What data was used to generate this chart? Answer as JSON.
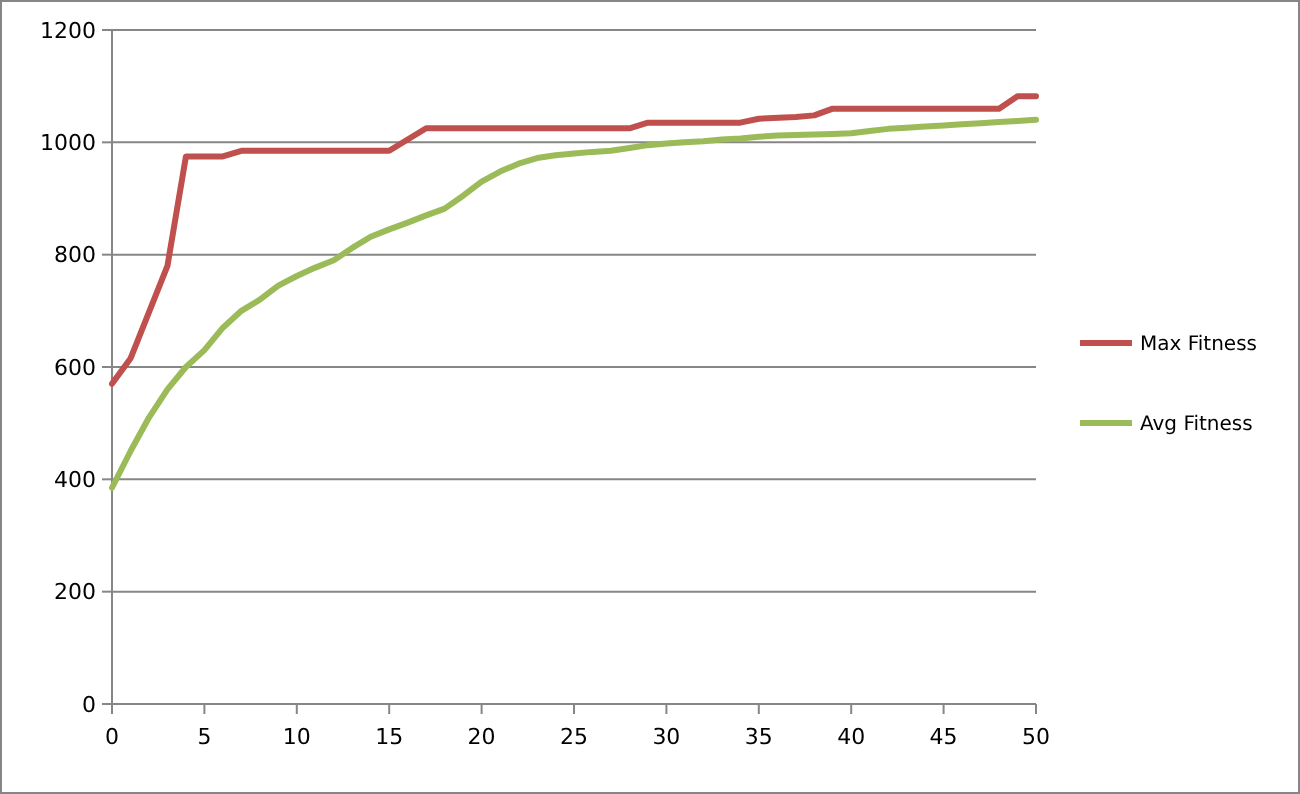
{
  "chart_data": {
    "type": "line",
    "xlim": [
      0,
      50
    ],
    "xticks": [
      0,
      5,
      10,
      15,
      20,
      25,
      30,
      35,
      40,
      45,
      50
    ],
    "ylim": [
      0,
      1200
    ],
    "yticks": [
      0,
      200,
      400,
      600,
      800,
      1000,
      1200
    ],
    "grid": "y",
    "legend": "right",
    "marker": "none",
    "line_style": "solid",
    "series": [
      {
        "name": "Max Fitness",
        "color": "#c0504d",
        "x": [
          0,
          1,
          3,
          4,
          6,
          7,
          15,
          17,
          28,
          29,
          34,
          35,
          37,
          38,
          39,
          48,
          49,
          50
        ],
        "values": [
          570,
          615,
          780,
          975,
          975,
          985,
          985,
          1025,
          1025,
          1035,
          1035,
          1042,
          1045,
          1048,
          1060,
          1060,
          1082,
          1082
        ]
      },
      {
        "name": "Avg Fitness",
        "color": "#9bbb59",
        "x": [
          0,
          1,
          2,
          3,
          4,
          5,
          6,
          7,
          8,
          9,
          10,
          11,
          12,
          13,
          14,
          15,
          16,
          17,
          18,
          19,
          20,
          21,
          22,
          23,
          24,
          25,
          26,
          27,
          28,
          29,
          30,
          31,
          32,
          33,
          34,
          35,
          36,
          37,
          38,
          39,
          40,
          41,
          42,
          43,
          44,
          45,
          46,
          47,
          48,
          49,
          50
        ],
        "values": [
          385,
          450,
          510,
          560,
          600,
          630,
          670,
          700,
          720,
          745,
          762,
          777,
          790,
          812,
          832,
          845,
          857,
          870,
          882,
          905,
          930,
          948,
          962,
          972,
          977,
          980,
          983,
          985,
          990,
          995,
          998,
          1000,
          1002,
          1005,
          1007,
          1010,
          1012,
          1013,
          1014,
          1015,
          1016,
          1020,
          1024,
          1026,
          1028,
          1030,
          1032,
          1034,
          1036,
          1038,
          1040
        ]
      }
    ]
  }
}
